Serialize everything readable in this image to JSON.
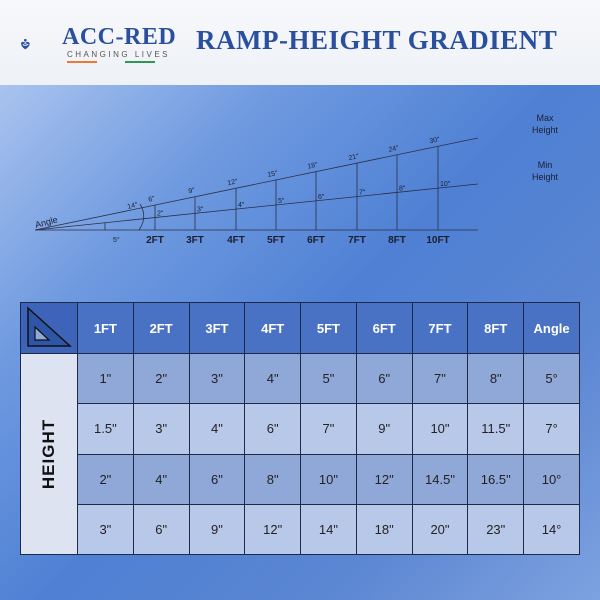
{
  "brand": {
    "name": "ACC-RED",
    "tagline": "CHANGING LIVES",
    "colors": {
      "primary": "#2a4f9e",
      "orange": "#e87b2f",
      "green": "#2e9a4f"
    }
  },
  "title": "RAMP-HEIGHT GRADIENT",
  "diagram": {
    "angle_label": "Angle",
    "max_label": [
      "Max",
      "Height"
    ],
    "min_label": [
      "Min",
      "Height"
    ],
    "min_angle": "5°",
    "max_angle": "14°",
    "lengths": [
      "2FT",
      "3FT",
      "4FT",
      "5FT",
      "6FT",
      "7FT",
      "8FT",
      "10FT"
    ],
    "max_heights": [
      "6\"",
      "9\"",
      "12\"",
      "15\"",
      "18\"",
      "21\"",
      "24\"",
      "30\""
    ],
    "min_heights": [
      "2\"",
      "3\"",
      "4\"",
      "5\"",
      "6\"",
      "7\"",
      "8\"",
      "10\""
    ]
  },
  "table": {
    "row_header": "HEIGHT",
    "columns": [
      "1FT",
      "2FT",
      "3FT",
      "4FT",
      "5FT",
      "6FT",
      "7FT",
      "8FT",
      "Angle"
    ],
    "rows": [
      [
        "1\"",
        "2\"",
        "3\"",
        "4\"",
        "5\"",
        "6\"",
        "7\"",
        "8\"",
        "5°"
      ],
      [
        "1.5\"",
        "3\"",
        "4\"",
        "6\"",
        "7\"",
        "9\"",
        "10\"",
        "11.5\"",
        "7°"
      ],
      [
        "2\"",
        "4\"",
        "6\"",
        "8\"",
        "10\"",
        "12\"",
        "14.5\"",
        "16.5\"",
        "10°"
      ],
      [
        "3\"",
        "6\"",
        "9\"",
        "12\"",
        "14\"",
        "18\"",
        "20\"",
        "23\"",
        "14°"
      ]
    ]
  }
}
